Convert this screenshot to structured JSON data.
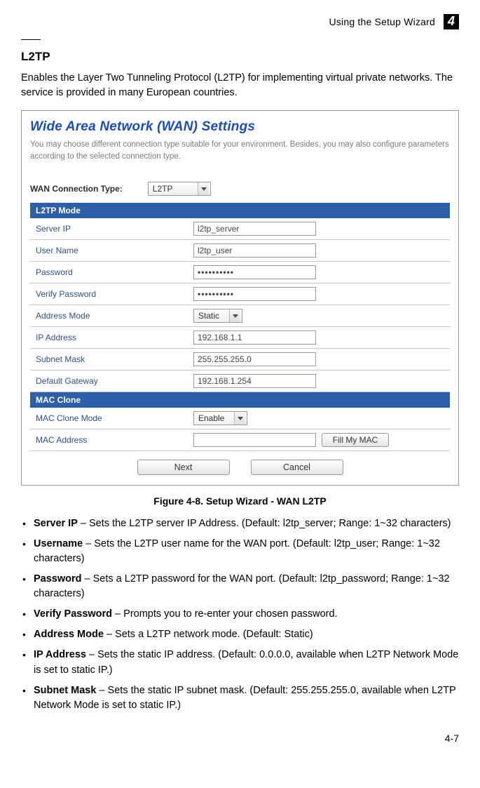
{
  "header": {
    "topic": "Using the Setup Wizard",
    "chapter": "4"
  },
  "section": {
    "title": "L2TP",
    "intro": "Enables the Layer Two Tunneling Protocol (L2TP) for implementing virtual private networks. The service is provided in many European countries."
  },
  "figure": {
    "title": "Wide Area Network (WAN) Settings",
    "desc": "You may choose different connection type suitable for your environment. Besides, you may also configure parameters according to the selected connection type.",
    "conn_label": "WAN Connection Type:",
    "conn_value": "L2TP",
    "sections": {
      "l2tp_mode": "L2TP Mode",
      "mac_clone": "MAC Clone"
    },
    "rows": {
      "server_ip": {
        "label": "Server IP",
        "value": "l2tp_server"
      },
      "user_name": {
        "label": "User Name",
        "value": "l2tp_user"
      },
      "password": {
        "label": "Password",
        "value": "••••••••••"
      },
      "verify_password": {
        "label": "Verify Password",
        "value": "••••••••••"
      },
      "address_mode": {
        "label": "Address Mode",
        "value": "Static"
      },
      "ip_address": {
        "label": "IP Address",
        "value": "192.168.1.1"
      },
      "subnet_mask": {
        "label": "Subnet Mask",
        "value": "255.255.255.0"
      },
      "default_gateway": {
        "label": "Default Gateway",
        "value": "192.168.1.254"
      },
      "mac_clone_mode": {
        "label": "MAC Clone Mode",
        "value": "Enable"
      },
      "mac_address": {
        "label": "MAC Address",
        "value": ""
      }
    },
    "buttons": {
      "fill_my_mac": "Fill My MAC",
      "next": "Next",
      "cancel": "Cancel"
    },
    "caption": "Figure 4-8.   Setup Wizard - WAN L2TP"
  },
  "descriptions": {
    "server_ip": {
      "name": "Server IP",
      "text": " – Sets the L2TP server IP Address. (Default: l2tp_server; Range: 1~32 characters)"
    },
    "username": {
      "name": "Username",
      "text": " – Sets the L2TP user name for the WAN port. (Default: l2tp_user; Range: 1~32 characters)"
    },
    "password": {
      "name": "Password",
      "text": " – Sets a L2TP password for the WAN port. (Default: l2tp_password; Range: 1~32 characters)"
    },
    "verify_password": {
      "name": "Verify Password",
      "text": " – Prompts you to re-enter your chosen password."
    },
    "address_mode": {
      "name": "Address Mode",
      "text": " – Sets a L2TP network mode. (Default: Static)"
    },
    "ip_address": {
      "name": "IP Address",
      "text": " – Sets the static IP address. (Default: 0.0.0.0, available when L2TP Network Mode is set to static IP.)"
    },
    "subnet_mask": {
      "name": "Subnet Mask",
      "text": " – Sets the static IP subnet mask. (Default: 255.255.255.0, available when L2TP Network Mode is set to static IP.)"
    }
  },
  "footer": {
    "page_num": "4-7"
  }
}
